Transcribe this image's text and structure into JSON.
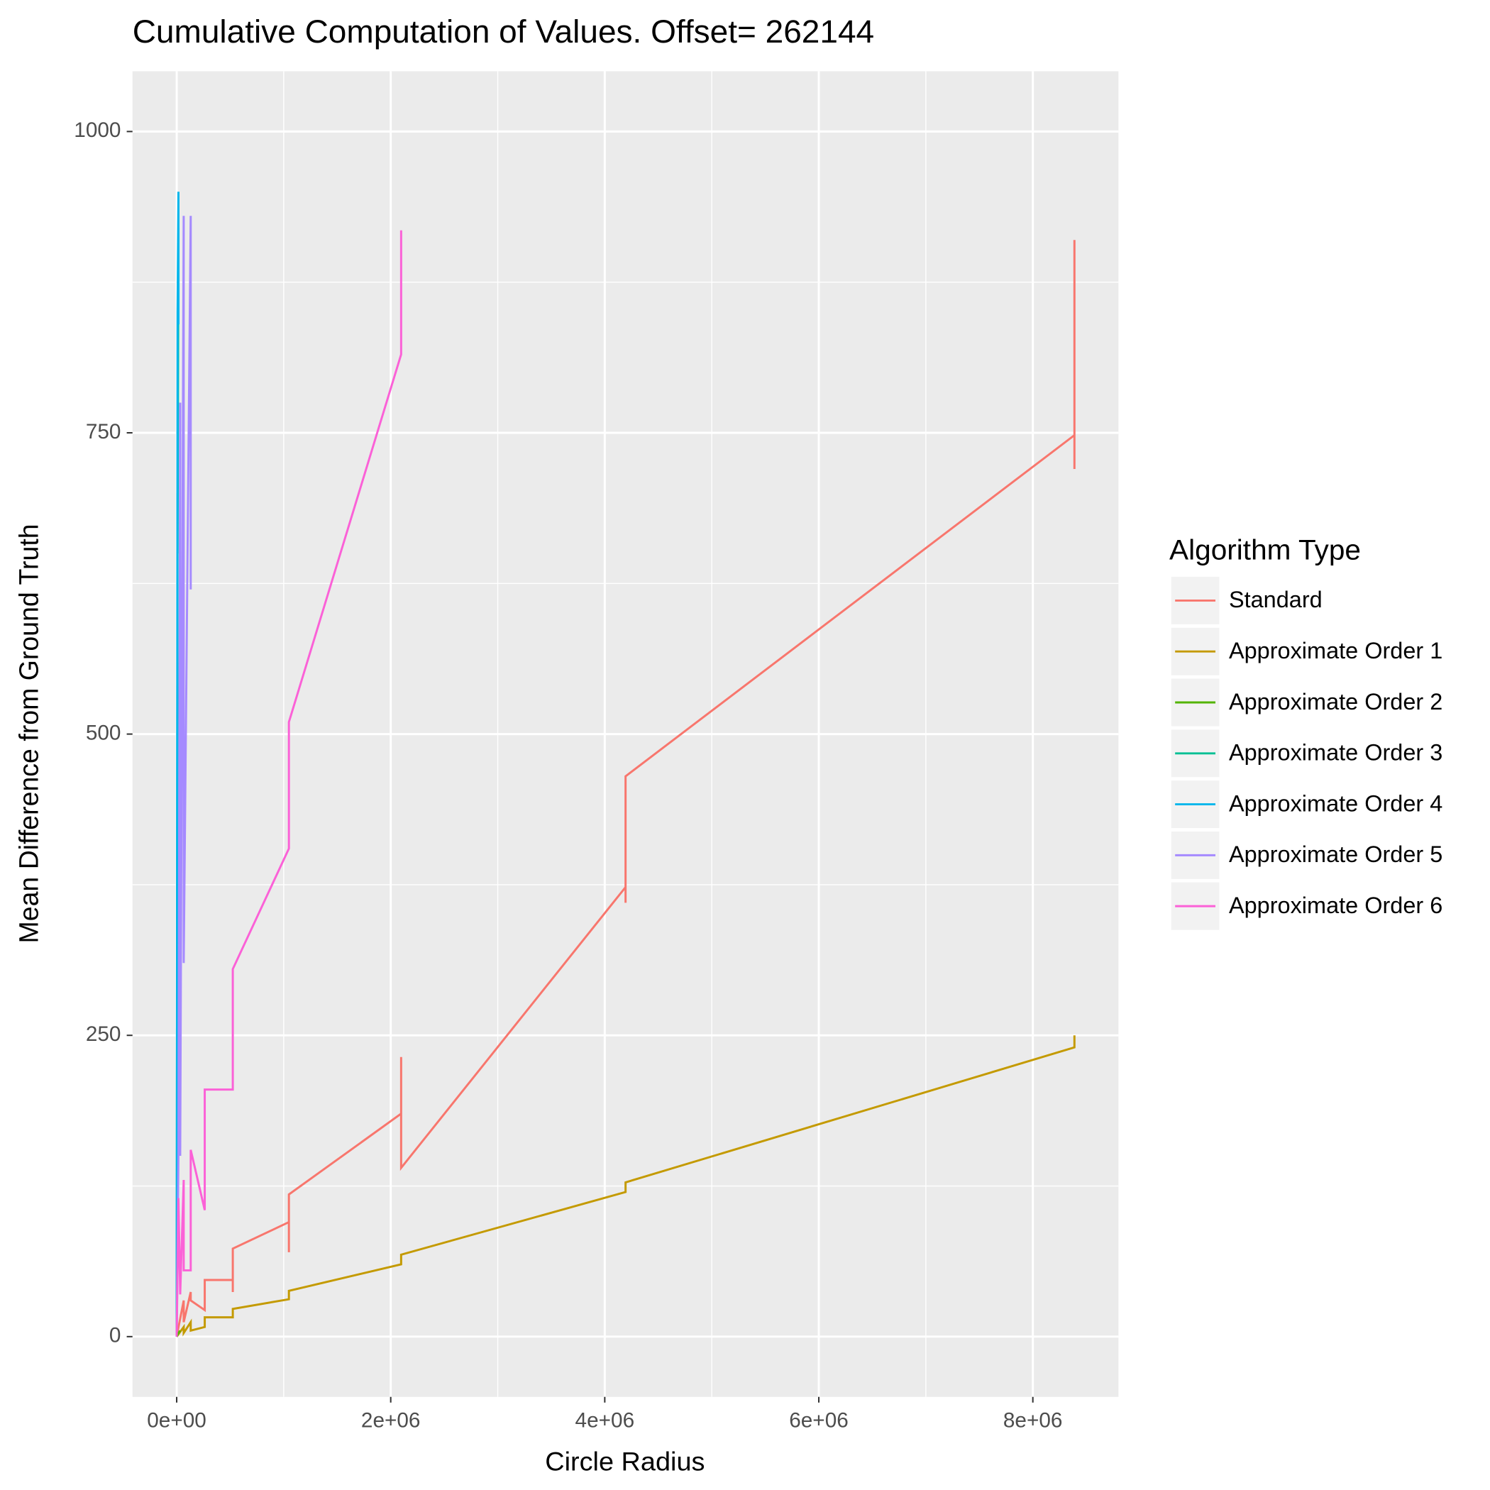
{
  "chart_data": {
    "type": "line",
    "title": "Cumulative Computation of Values. Offset= 262144",
    "x_label": "Circle Radius",
    "y_label": "Mean Difference from Ground Truth",
    "legend_title": "Algorithm Type",
    "legend_position": "right",
    "grid": true,
    "xlim": [
      -413000,
      8800000
    ],
    "ylim": [
      -50,
      1050
    ],
    "xticks": [
      {
        "value": 0,
        "label": "0e+00"
      },
      {
        "value": 2000000,
        "label": "2e+06"
      },
      {
        "value": 4000000,
        "label": "4e+06"
      },
      {
        "value": 6000000,
        "label": "6e+06"
      },
      {
        "value": 8000000,
        "label": "8e+06"
      }
    ],
    "yticks": [
      0,
      250,
      500,
      750,
      1000
    ],
    "x_minor_ticks": [
      1000000,
      3000000,
      5000000,
      7000000
    ],
    "y_minor_ticks": [
      125,
      375,
      625,
      875
    ],
    "series": [
      {
        "name": "Standard",
        "color": "#F8766D",
        "x": [
          0,
          65536,
          65536,
          131072,
          131072,
          262144,
          262144,
          524288,
          524288,
          524288,
          1048576,
          1048576,
          1048576,
          2097152,
          2097152,
          2097152,
          4194304,
          4194304,
          4194304,
          8388608,
          8388608,
          8388608,
          8388608
        ],
        "values": [
          0,
          30,
          12,
          37,
          30,
          22,
          47,
          47,
          37,
          73,
          95,
          70,
          118,
          185,
          232,
          140,
          373,
          360,
          465,
          748,
          720,
          910,
          750
        ]
      },
      {
        "name": "Approximate Order 1",
        "color": "#C49A00",
        "x": [
          0,
          65536,
          65536,
          131072,
          131072,
          262144,
          262144,
          524288,
          524288,
          1048576,
          1048576,
          2097152,
          2097152,
          4194304,
          4194304,
          8388608,
          8388608
        ],
        "values": [
          0,
          8,
          3,
          12,
          5,
          8,
          16,
          16,
          23,
          31,
          38,
          60,
          68,
          120,
          128,
          240,
          250
        ]
      },
      {
        "name": "Approximate Order 2",
        "color": "#53B400",
        "x": [
          0,
          16384,
          32768
        ],
        "values": [
          0,
          3,
          5
        ]
      },
      {
        "name": "Approximate Order 3",
        "color": "#00C094",
        "x": [
          0,
          8192,
          8192,
          16384
        ],
        "values": [
          0,
          700,
          650,
          920
        ]
      },
      {
        "name": "Approximate Order 4",
        "color": "#00B6EB",
        "x": [
          0,
          8192,
          16384,
          16384,
          16384
        ],
        "values": [
          0,
          850,
          950,
          840,
          940
        ]
      },
      {
        "name": "Approximate Order 5",
        "color": "#A58AFF",
        "x": [
          0,
          16384,
          32768,
          32768,
          65536,
          65536,
          131072,
          131072
        ],
        "values": [
          0,
          150,
          775,
          150,
          930,
          310,
          930,
          620
        ]
      },
      {
        "name": "Approximate Order 6",
        "color": "#FB61D7",
        "x": [
          0,
          16384,
          32768,
          65536,
          65536,
          131072,
          131072,
          262144,
          262144,
          524288,
          524288,
          1048576,
          1048576,
          2097152,
          2097152
        ],
        "values": [
          0,
          115,
          35,
          130,
          55,
          55,
          155,
          105,
          205,
          205,
          305,
          405,
          510,
          815,
          918
        ]
      }
    ]
  }
}
